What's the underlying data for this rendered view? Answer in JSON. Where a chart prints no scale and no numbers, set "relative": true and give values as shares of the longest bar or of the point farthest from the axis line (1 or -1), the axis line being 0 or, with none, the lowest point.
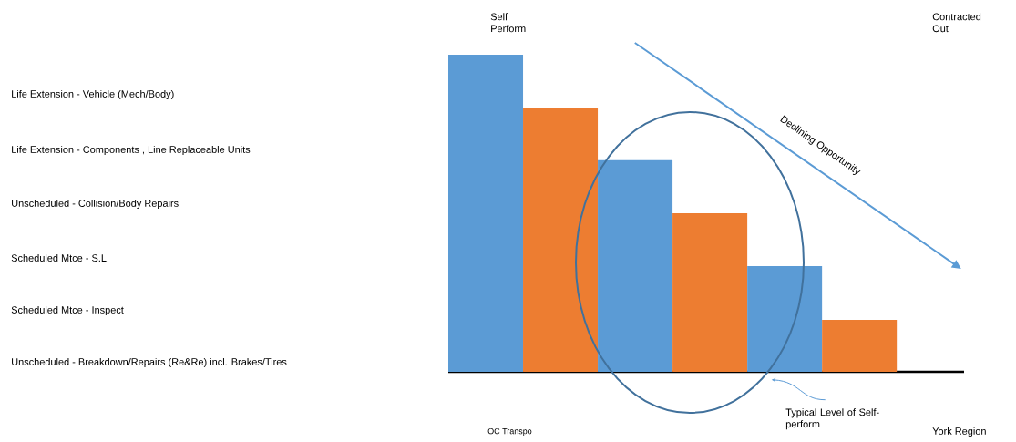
{
  "chart_data": {
    "type": "bar",
    "relative": true,
    "categories": [
      null,
      null,
      null,
      null,
      null,
      null
    ],
    "values": [
      1,
      0.833,
      0.667,
      0.5,
      0.333,
      0.164
    ],
    "colors": [
      "#5b9bd5",
      "#ed7d31",
      "#5b9bd5",
      "#ed7d31",
      "#5b9bd5",
      "#ed7d31"
    ],
    "annotations": [
      "Self Perform",
      "Contracted Out",
      "Life Extension - Vehicle (Mech/Body)",
      "Life Extension - Components , Line Replaceable Units",
      "Unscheduled - Collision/Body Repairs",
      "Scheduled Mtce - S.L.",
      "Scheduled Mtce - Inspect",
      "Unscheduled - Breakdown/Repairs (Re&Re) incl. Brakes/Tires",
      "Declining Opportunity",
      "Typical Level of Self-perform",
      "OC Transpo",
      "York Region"
    ]
  }
}
